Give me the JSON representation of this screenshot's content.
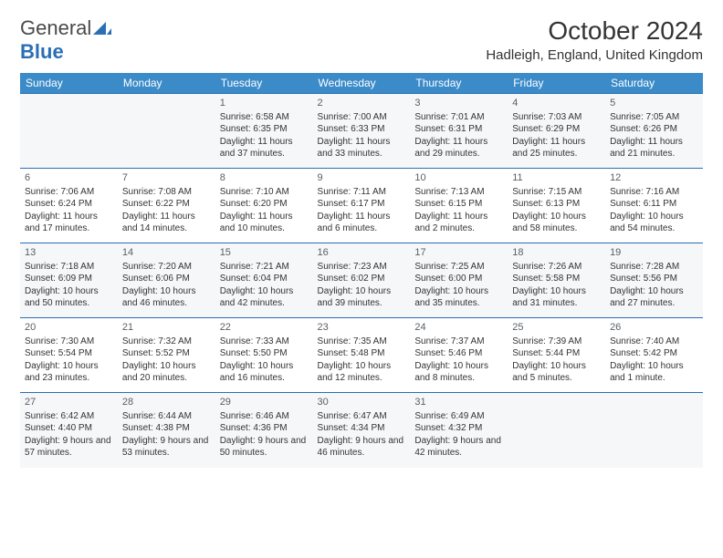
{
  "logo": {
    "word1": "General",
    "word2": "Blue"
  },
  "title": "October 2024",
  "location": "Hadleigh, England, United Kingdom",
  "colors": {
    "header_bg": "#3b8bc9",
    "header_text": "#ffffff",
    "row_odd_bg": "#f5f7f9",
    "row_even_bg": "#ffffff",
    "border": "#2a6fb5",
    "text": "#333333",
    "logo_blue": "#2a6fb5",
    "logo_gray": "#4a4a4a"
  },
  "days": [
    "Sunday",
    "Monday",
    "Tuesday",
    "Wednesday",
    "Thursday",
    "Friday",
    "Saturday"
  ],
  "weeks": [
    [
      null,
      null,
      {
        "n": "1",
        "sr": "6:58 AM",
        "ss": "6:35 PM",
        "dl": "11 hours and 37 minutes."
      },
      {
        "n": "2",
        "sr": "7:00 AM",
        "ss": "6:33 PM",
        "dl": "11 hours and 33 minutes."
      },
      {
        "n": "3",
        "sr": "7:01 AM",
        "ss": "6:31 PM",
        "dl": "11 hours and 29 minutes."
      },
      {
        "n": "4",
        "sr": "7:03 AM",
        "ss": "6:29 PM",
        "dl": "11 hours and 25 minutes."
      },
      {
        "n": "5",
        "sr": "7:05 AM",
        "ss": "6:26 PM",
        "dl": "11 hours and 21 minutes."
      }
    ],
    [
      {
        "n": "6",
        "sr": "7:06 AM",
        "ss": "6:24 PM",
        "dl": "11 hours and 17 minutes."
      },
      {
        "n": "7",
        "sr": "7:08 AM",
        "ss": "6:22 PM",
        "dl": "11 hours and 14 minutes."
      },
      {
        "n": "8",
        "sr": "7:10 AM",
        "ss": "6:20 PM",
        "dl": "11 hours and 10 minutes."
      },
      {
        "n": "9",
        "sr": "7:11 AM",
        "ss": "6:17 PM",
        "dl": "11 hours and 6 minutes."
      },
      {
        "n": "10",
        "sr": "7:13 AM",
        "ss": "6:15 PM",
        "dl": "11 hours and 2 minutes."
      },
      {
        "n": "11",
        "sr": "7:15 AM",
        "ss": "6:13 PM",
        "dl": "10 hours and 58 minutes."
      },
      {
        "n": "12",
        "sr": "7:16 AM",
        "ss": "6:11 PM",
        "dl": "10 hours and 54 minutes."
      }
    ],
    [
      {
        "n": "13",
        "sr": "7:18 AM",
        "ss": "6:09 PM",
        "dl": "10 hours and 50 minutes."
      },
      {
        "n": "14",
        "sr": "7:20 AM",
        "ss": "6:06 PM",
        "dl": "10 hours and 46 minutes."
      },
      {
        "n": "15",
        "sr": "7:21 AM",
        "ss": "6:04 PM",
        "dl": "10 hours and 42 minutes."
      },
      {
        "n": "16",
        "sr": "7:23 AM",
        "ss": "6:02 PM",
        "dl": "10 hours and 39 minutes."
      },
      {
        "n": "17",
        "sr": "7:25 AM",
        "ss": "6:00 PM",
        "dl": "10 hours and 35 minutes."
      },
      {
        "n": "18",
        "sr": "7:26 AM",
        "ss": "5:58 PM",
        "dl": "10 hours and 31 minutes."
      },
      {
        "n": "19",
        "sr": "7:28 AM",
        "ss": "5:56 PM",
        "dl": "10 hours and 27 minutes."
      }
    ],
    [
      {
        "n": "20",
        "sr": "7:30 AM",
        "ss": "5:54 PM",
        "dl": "10 hours and 23 minutes."
      },
      {
        "n": "21",
        "sr": "7:32 AM",
        "ss": "5:52 PM",
        "dl": "10 hours and 20 minutes."
      },
      {
        "n": "22",
        "sr": "7:33 AM",
        "ss": "5:50 PM",
        "dl": "10 hours and 16 minutes."
      },
      {
        "n": "23",
        "sr": "7:35 AM",
        "ss": "5:48 PM",
        "dl": "10 hours and 12 minutes."
      },
      {
        "n": "24",
        "sr": "7:37 AM",
        "ss": "5:46 PM",
        "dl": "10 hours and 8 minutes."
      },
      {
        "n": "25",
        "sr": "7:39 AM",
        "ss": "5:44 PM",
        "dl": "10 hours and 5 minutes."
      },
      {
        "n": "26",
        "sr": "7:40 AM",
        "ss": "5:42 PM",
        "dl": "10 hours and 1 minute."
      }
    ],
    [
      {
        "n": "27",
        "sr": "6:42 AM",
        "ss": "4:40 PM",
        "dl": "9 hours and 57 minutes."
      },
      {
        "n": "28",
        "sr": "6:44 AM",
        "ss": "4:38 PM",
        "dl": "9 hours and 53 minutes."
      },
      {
        "n": "29",
        "sr": "6:46 AM",
        "ss": "4:36 PM",
        "dl": "9 hours and 50 minutes."
      },
      {
        "n": "30",
        "sr": "6:47 AM",
        "ss": "4:34 PM",
        "dl": "9 hours and 46 minutes."
      },
      {
        "n": "31",
        "sr": "6:49 AM",
        "ss": "4:32 PM",
        "dl": "9 hours and 42 minutes."
      },
      null,
      null
    ]
  ],
  "labels": {
    "sunrise": "Sunrise:",
    "sunset": "Sunset:",
    "daylight": "Daylight:"
  }
}
